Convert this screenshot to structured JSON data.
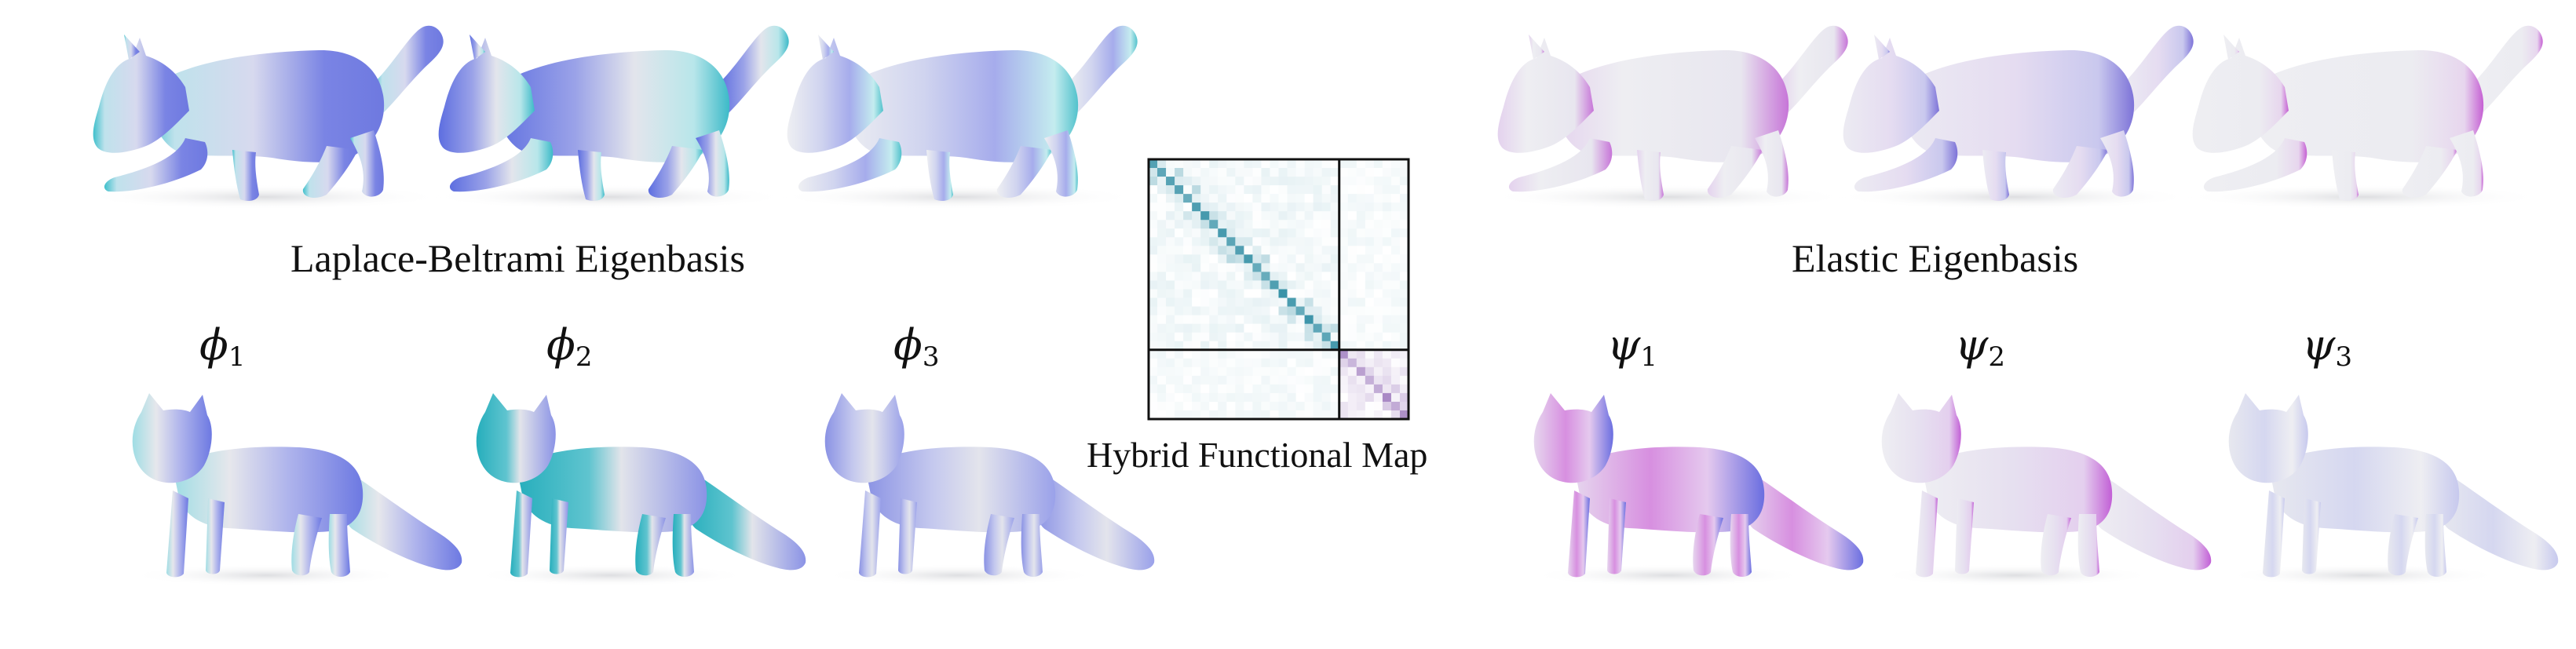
{
  "captions": {
    "left": "Laplace-Beltrami Eigenbasis",
    "right": "Elastic Eigenbasis",
    "center": "Hybrid Functional Map"
  },
  "symbols": {
    "phi": "ϕ",
    "psi": "ψ",
    "sub1": "1",
    "sub2": "2",
    "sub3": "3"
  },
  "colors": {
    "base_grey": "#e8e9ee",
    "blue": "#7b84e6",
    "teal": "#2fb4c2",
    "magenta": "#c774d6",
    "matrix_teal": "#3a93a8",
    "matrix_purple": "#8a5fb0"
  },
  "shapes": {
    "top_row": "wolf-mesh",
    "bottom_row": "fox-mesh"
  }
}
